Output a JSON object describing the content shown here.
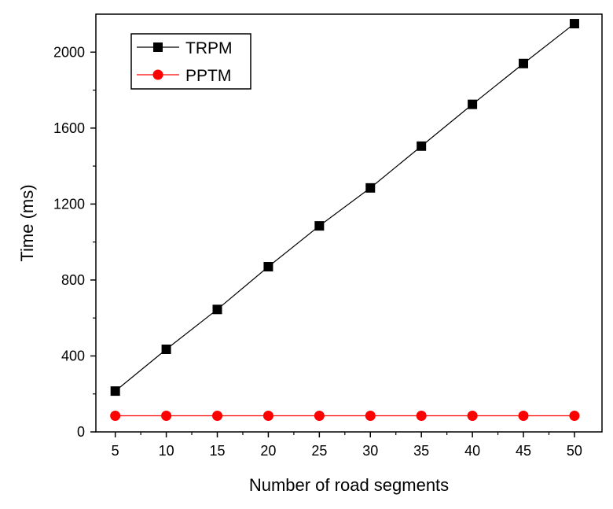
{
  "chart_data": {
    "type": "line",
    "xlabel": "Number of road segments",
    "ylabel": "Time (ms)",
    "xlim": [
      3.1,
      52.7
    ],
    "ylim": [
      0,
      2200
    ],
    "x_ticks": [
      5,
      10,
      15,
      20,
      25,
      30,
      35,
      40,
      45,
      50
    ],
    "y_ticks": [
      0,
      400,
      800,
      1200,
      1600,
      2000
    ],
    "x": [
      5,
      10,
      15,
      20,
      25,
      30,
      35,
      40,
      45,
      50
    ],
    "legend_position": "top-left",
    "grid": false,
    "series": [
      {
        "name": "TRPM",
        "color": "#000000",
        "marker": "square",
        "values": [
          215,
          435,
          645,
          870,
          1085,
          1285,
          1505,
          1725,
          1940,
          2150
        ]
      },
      {
        "name": "PPTM",
        "color": "#ff0000",
        "marker": "circle",
        "values": [
          85,
          85,
          85,
          85,
          85,
          85,
          85,
          85,
          85,
          85
        ]
      }
    ]
  }
}
